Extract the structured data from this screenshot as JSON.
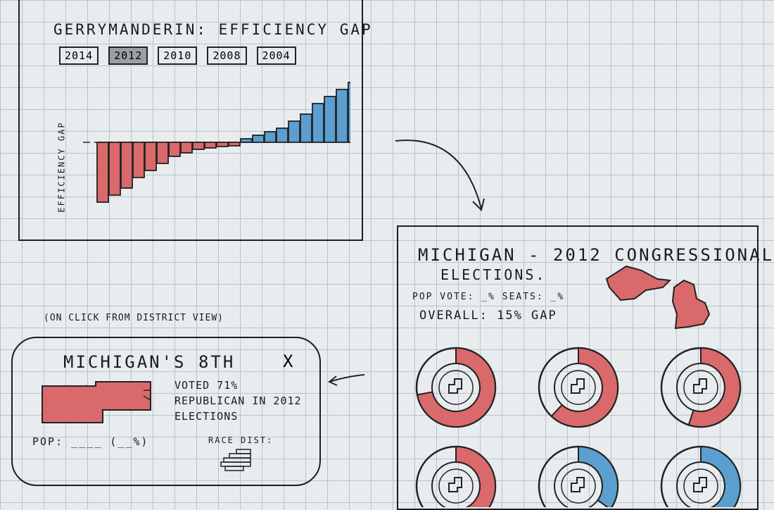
{
  "chart": {
    "title": "GERRYMANDERIN: EFFICIENCY GAP",
    "years": [
      {
        "label": "2014",
        "active": false
      },
      {
        "label": "2012",
        "active": true
      },
      {
        "label": "2010",
        "active": false
      },
      {
        "label": "2008",
        "active": false
      },
      {
        "label": "2004",
        "active": false
      }
    ],
    "ylabel": "EFFICIENCY GAP"
  },
  "chart_data": {
    "type": "bar",
    "values": [
      -8.5,
      -7.5,
      -6.5,
      -5.0,
      -4.0,
      -3.0,
      -2.0,
      -1.5,
      -1.0,
      -0.8,
      -0.6,
      -0.5,
      0.5,
      1.0,
      1.5,
      2.0,
      3.0,
      4.0,
      5.5,
      6.5,
      7.5,
      8.5
    ],
    "colors": {
      "negative": "#d9696b",
      "positive": "#5a9fcf"
    }
  },
  "detail": {
    "title_line1": "MICHIGAN - 2012 CONGRESSIONAL",
    "title_line2": "ELECTIONS.",
    "stats_line1": "POP VOTE: _%  SEATS: _%",
    "stats_line2": "OVERALL: 15% GAP",
    "map_color": "#d9696b",
    "donuts": [
      {
        "red": 0.72,
        "blue": 0.0
      },
      {
        "red": 0.62,
        "blue": 0.0
      },
      {
        "red": 0.55,
        "blue": 0.0
      },
      {
        "red": 0.45,
        "blue": 0.0
      },
      {
        "red": 0.0,
        "blue": 0.35
      },
      {
        "red": 0.0,
        "blue": 0.45
      }
    ]
  },
  "caption": "(ON CLICK FROM DISTRICT VIEW)",
  "card": {
    "title": "MICHIGAN'S 8th",
    "close": "X",
    "desc": "VOTED 71% REPUBLICAN IN 2012 ELECTIONS",
    "pop": "POP: ____ (__%)",
    "race": "RACE DIST:"
  }
}
